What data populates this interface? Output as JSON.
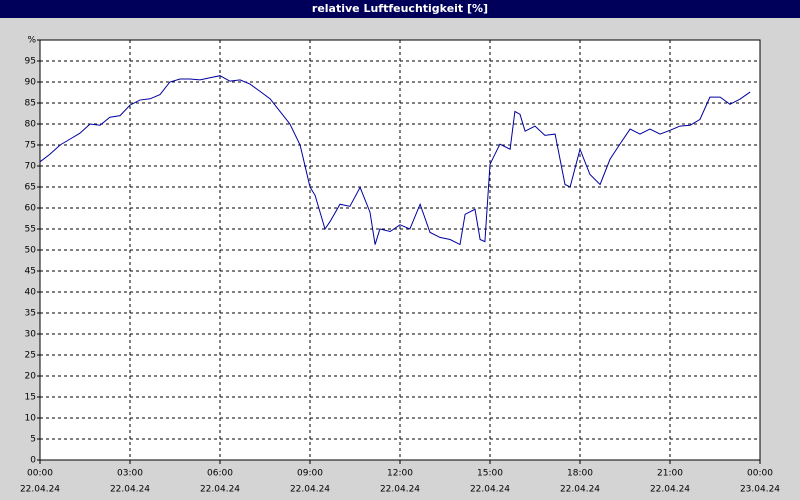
{
  "chart_data": {
    "type": "line",
    "title": "relative Luftfeuchtigkeit [%]",
    "x": [
      0,
      0.33,
      0.67,
      1,
      1.33,
      1.67,
      2,
      2.33,
      2.67,
      3,
      3.33,
      3.67,
      4,
      4.33,
      4.67,
      5,
      5.33,
      5.67,
      6,
      6.33,
      6.67,
      7,
      7.33,
      7.67,
      8,
      8.33,
      8.67,
      9,
      9.17,
      9.5,
      9.67,
      10,
      10.33,
      10.67,
      11,
      11.17,
      11.33,
      11.67,
      12,
      12.33,
      12.67,
      13,
      13.33,
      13.67,
      14,
      14.17,
      14.5,
      14.67,
      14.83,
      15,
      15.33,
      15.67,
      15.83,
      16,
      16.17,
      16.5,
      16.83,
      17.17,
      17.5,
      17.67,
      18,
      18.33,
      18.67,
      19,
      19.33,
      19.67,
      20,
      20.33,
      20.67,
      21,
      21.33,
      21.67,
      22,
      22.33,
      22.67,
      23,
      23.33,
      23.67
    ],
    "series": [
      {
        "name": null,
        "color": "#0000a0",
        "values": [
          71,
          72.8,
          75,
          76.4,
          77.8,
          80,
          79.7,
          81.6,
          82,
          84.5,
          85.7,
          86,
          87,
          90,
          90.7,
          90.7,
          90.5,
          91,
          91.5,
          90.2,
          90.5,
          89.5,
          87.8,
          86,
          83,
          80,
          75,
          65,
          63,
          55,
          56.8,
          60.9,
          60.4,
          64.9,
          59,
          51.3,
          55,
          54.4,
          56,
          55,
          60.9,
          54.2,
          53,
          52.5,
          51.3,
          58.5,
          59.7,
          52.5,
          52,
          70.4,
          75.2,
          74,
          83,
          82.3,
          78.3,
          79.5,
          77.3,
          77.6,
          65.6,
          65,
          74,
          68,
          65.6,
          71.6,
          75.2,
          78.8,
          77.6,
          78.8,
          77.6,
          78.5,
          79.5,
          79.7,
          81.1,
          86.4,
          86.4,
          84.7,
          85.9,
          87.6
        ]
      }
    ],
    "xlim": [
      0,
      24
    ],
    "xticks": [
      {
        "value": 0,
        "label": "00:00"
      },
      {
        "value": 3,
        "label": "03:00"
      },
      {
        "value": 6,
        "label": "06:00"
      },
      {
        "value": 9,
        "label": "09:00"
      },
      {
        "value": 12,
        "label": "12:00"
      },
      {
        "value": 15,
        "label": "15:00"
      },
      {
        "value": 18,
        "label": "18:00"
      },
      {
        "value": 21,
        "label": "21:00"
      },
      {
        "value": 24,
        "label": "00:00"
      }
    ],
    "xtick_dates": [
      "22.04.24",
      "22.04.24",
      "22.04.24",
      "22.04.24",
      "22.04.24",
      "22.04.24",
      "22.04.24",
      "22.04.24",
      "23.04.24"
    ],
    "ylim": [
      0,
      100
    ],
    "yticks": [
      0,
      5,
      10,
      15,
      20,
      25,
      30,
      35,
      40,
      45,
      50,
      55,
      60,
      65,
      70,
      75,
      80,
      85,
      90,
      95,
      {
        "value": 100,
        "label": "%"
      }
    ],
    "grid": true
  }
}
